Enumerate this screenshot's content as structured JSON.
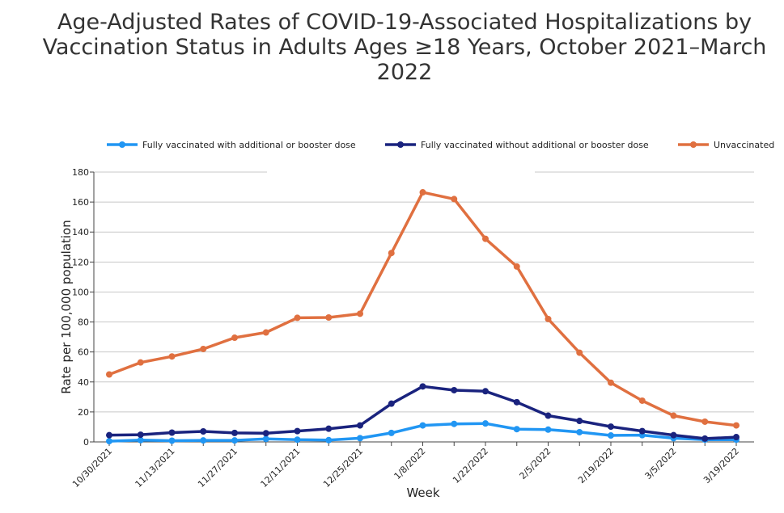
{
  "chart_data": {
    "type": "line",
    "title": "Age-Adjusted Rates of COVID-19-Associated Hospitalizations by Vaccination Status in Adults Ages ≥18 Years, October 2021–March 2022",
    "xlabel": "Week",
    "ylabel": "Rate per 100,000 population",
    "ylim": [
      0,
      180
    ],
    "yticks": [
      "0",
      "20",
      "40",
      "60",
      "80",
      "100",
      "120",
      "140",
      "160",
      "180"
    ],
    "x": [
      "10/30/2021",
      "11/6/2021",
      "11/13/2021",
      "11/20/2021",
      "11/27/2021",
      "12/4/2021",
      "12/11/2021",
      "12/18/2021",
      "12/25/2021",
      "1/1/2022",
      "1/8/2022",
      "1/15/2022",
      "1/22/2022",
      "1/29/2022",
      "2/5/2022",
      "2/12/2022",
      "2/19/2022",
      "2/26/2022",
      "3/5/2022",
      "3/12/2022",
      "3/19/2022"
    ],
    "xtick_labels": [
      "10/30/2021",
      "11/13/2021",
      "11/27/2021",
      "12/11/2021",
      "12/25/2021",
      "1/8/2022",
      "1/22/2022",
      "2/5/2022",
      "2/19/2022",
      "3/5/2022",
      "3/19/2022"
    ],
    "grid": true,
    "legend_position": "top",
    "series": [
      {
        "name": "Fully vaccinated with additional or booster dose",
        "color": "#2196f3",
        "values": [
          0.5,
          1.2,
          0.8,
          1.0,
          1.0,
          2.0,
          1.5,
          1.2,
          2.5,
          6.0,
          11.0,
          12.0,
          12.3,
          8.5,
          8.2,
          6.5,
          4.3,
          4.5,
          2.5,
          1.5,
          1.5
        ]
      },
      {
        "name": "Fully vaccinated without additional or booster dose",
        "color": "#1a237e",
        "values": [
          4.5,
          4.8,
          6.2,
          7.0,
          6.0,
          5.8,
          7.2,
          8.8,
          11.0,
          25.5,
          37.0,
          34.5,
          33.8,
          26.5,
          17.5,
          14.0,
          10.2,
          7.2,
          4.5,
          2.2,
          3.2
        ]
      },
      {
        "name": "Unvaccinated",
        "color": "#e07040",
        "values": [
          45.0,
          53.0,
          57.0,
          62.0,
          69.5,
          73.0,
          82.8,
          83.0,
          85.5,
          126.0,
          166.5,
          162.0,
          135.5,
          117.0,
          82.0,
          59.5,
          39.5,
          27.5,
          17.5,
          13.5,
          11.0
        ]
      }
    ]
  }
}
